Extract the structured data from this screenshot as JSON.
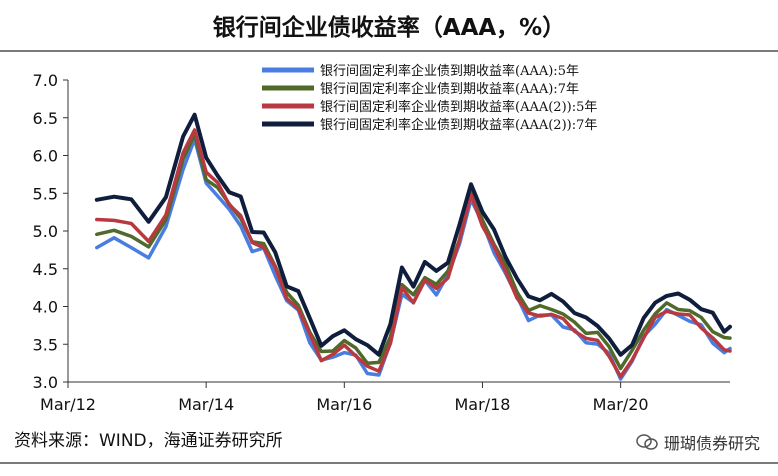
{
  "header": {
    "title": "银行间企业债收益率（AAA，%）"
  },
  "footer": {
    "source": "资料来源：WIND，海通证券研究所",
    "watermark": "珊瑚债券研究"
  },
  "chart_data": {
    "type": "line",
    "title": "银行间企业债收益率（AAA，%）",
    "xlabel": "",
    "ylabel": "",
    "x_ticks": [
      "Mar/12",
      "Mar/14",
      "Mar/16",
      "Mar/18",
      "Mar/20"
    ],
    "y_ticks": [
      "3.0",
      "3.5",
      "4.0",
      "4.5",
      "5.0",
      "5.5",
      "6.0",
      "6.5",
      "7.0"
    ],
    "ylim": [
      3.0,
      7.0
    ],
    "xlim": [
      "2012-03",
      "2021-10"
    ],
    "grid": false,
    "legend_position": "top-right",
    "x": [
      "2012-08",
      "2012-11",
      "2013-02",
      "2013-05",
      "2013-08",
      "2013-11",
      "2014-01",
      "2014-03",
      "2014-05",
      "2014-07",
      "2014-09",
      "2014-11",
      "2015-01",
      "2015-03",
      "2015-05",
      "2015-07",
      "2015-09",
      "2015-11",
      "2016-01",
      "2016-03",
      "2016-05",
      "2016-07",
      "2016-09",
      "2016-11",
      "2017-01",
      "2017-03",
      "2017-05",
      "2017-07",
      "2017-09",
      "2017-11",
      "2018-01",
      "2018-03",
      "2018-05",
      "2018-07",
      "2018-09",
      "2018-11",
      "2019-01",
      "2019-03",
      "2019-05",
      "2019-07",
      "2019-09",
      "2019-11",
      "2020-01",
      "2020-03",
      "2020-05",
      "2020-07",
      "2020-09",
      "2020-11",
      "2021-01",
      "2021-03",
      "2021-05",
      "2021-07",
      "2021-09",
      "2021-10"
    ],
    "series": [
      {
        "name": "银行间固定利率企业债到期收益率(AAA):5年",
        "color": "#4a7de0",
        "values": [
          4.78,
          4.88,
          4.82,
          4.62,
          5.05,
          5.85,
          6.18,
          5.65,
          5.48,
          5.25,
          5.1,
          4.72,
          4.75,
          4.45,
          4.05,
          3.95,
          3.55,
          3.25,
          3.35,
          3.4,
          3.32,
          3.15,
          3.08,
          3.5,
          4.2,
          4.02,
          4.35,
          4.18,
          4.38,
          4.85,
          5.42,
          5.08,
          4.75,
          4.42,
          4.12,
          3.85,
          3.85,
          3.9,
          3.75,
          3.65,
          3.55,
          3.5,
          3.35,
          3.08,
          3.25,
          3.6,
          3.8,
          3.92,
          3.9,
          3.82,
          3.72,
          3.55,
          3.38,
          3.42
        ]
      },
      {
        "name": "银行间固定利率企业债到期收益率(AAA):7年",
        "color": "#4f6a2a",
        "values": [
          4.92,
          5.02,
          4.95,
          4.75,
          5.18,
          5.95,
          6.25,
          5.72,
          5.55,
          5.35,
          5.2,
          4.82,
          4.85,
          4.55,
          4.15,
          4.05,
          3.65,
          3.38,
          3.45,
          3.52,
          3.45,
          3.28,
          3.22,
          3.62,
          4.3,
          4.12,
          4.42,
          4.28,
          4.45,
          4.92,
          5.5,
          5.15,
          4.85,
          4.52,
          4.22,
          3.95,
          3.98,
          4.0,
          3.88,
          3.78,
          3.68,
          3.62,
          3.48,
          3.2,
          3.38,
          3.72,
          3.9,
          4.02,
          4.0,
          3.92,
          3.85,
          3.7,
          3.55,
          3.6
        ]
      },
      {
        "name": "银行间固定利率企业债到期收益率(AAA(2)):5年",
        "color": "#b8393f",
        "values": [
          5.12,
          5.18,
          5.08,
          4.85,
          5.25,
          6.0,
          6.35,
          5.8,
          5.6,
          5.38,
          5.2,
          4.82,
          4.82,
          4.5,
          4.1,
          4.0,
          3.6,
          3.3,
          3.38,
          3.45,
          3.38,
          3.2,
          3.12,
          3.55,
          4.22,
          4.05,
          4.38,
          4.2,
          4.4,
          4.88,
          5.45,
          5.1,
          4.78,
          4.45,
          4.15,
          3.88,
          3.88,
          3.92,
          3.8,
          3.7,
          3.58,
          3.52,
          3.38,
          3.05,
          3.28,
          3.62,
          3.82,
          3.95,
          3.92,
          3.85,
          3.75,
          3.58,
          3.4,
          3.45
        ]
      },
      {
        "name": "银行间固定利率企业债到期收益率(AAA(2)):7年",
        "color": "#0f1e3c",
        "values": [
          5.42,
          5.48,
          5.38,
          5.15,
          5.45,
          6.22,
          6.58,
          5.95,
          5.72,
          5.55,
          5.42,
          5.0,
          5.0,
          4.68,
          4.3,
          4.2,
          3.82,
          3.52,
          3.58,
          3.68,
          3.6,
          3.45,
          3.38,
          3.78,
          4.48,
          4.3,
          4.58,
          4.45,
          4.62,
          5.05,
          5.62,
          5.28,
          4.98,
          4.68,
          4.38,
          4.1,
          4.12,
          4.15,
          4.05,
          3.95,
          3.82,
          3.75,
          3.6,
          3.32,
          3.52,
          3.85,
          4.02,
          4.18,
          4.15,
          4.08,
          4.0,
          3.88,
          3.68,
          3.75
        ]
      }
    ]
  }
}
